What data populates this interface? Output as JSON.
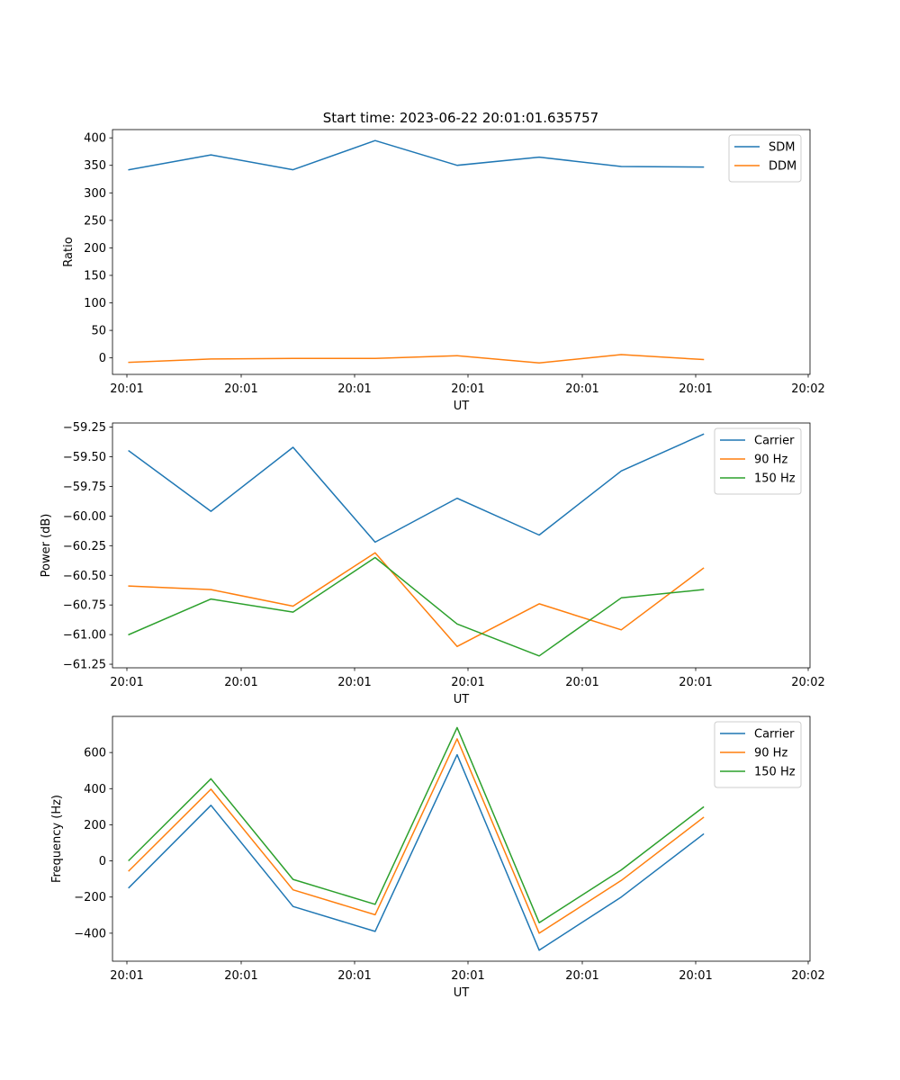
{
  "figure_title": "Start time: 2023-06-22 20:01:01.635757",
  "colors": {
    "blue": "#1f77b4",
    "orange": "#ff7f0e",
    "green": "#2ca02c",
    "axes": "#000000",
    "legend_border": "#cccccc",
    "background": "#ffffff"
  },
  "chart_data": [
    {
      "type": "line",
      "title": "Start time: 2023-06-22 20:01:01.635757",
      "xlabel": "UT",
      "ylabel": "Ratio",
      "x_ticks": [
        "20:01",
        "20:01",
        "20:01",
        "20:01",
        "20:01",
        "20:01",
        "20:02"
      ],
      "x": [
        1,
        2,
        3,
        4,
        5,
        6,
        7,
        8
      ],
      "xlim": [
        0.8,
        9.3
      ],
      "ylim": [
        -30,
        415
      ],
      "y_ticks": [
        0,
        50,
        100,
        150,
        200,
        250,
        300,
        350,
        400
      ],
      "y_tick_labels": [
        "0",
        "50",
        "100",
        "150",
        "200",
        "250",
        "300",
        "350",
        "400"
      ],
      "legend_position": "upper right",
      "grid": false,
      "series": [
        {
          "name": "SDM",
          "color": "#1f77b4",
          "values": [
            342,
            369,
            342,
            395,
            350,
            365,
            348,
            347
          ]
        },
        {
          "name": "DDM",
          "color": "#ff7f0e",
          "values": [
            -8,
            -2,
            -1,
            -1,
            4,
            -9,
            6,
            -3
          ]
        }
      ]
    },
    {
      "type": "line",
      "title": "",
      "xlabel": "UT",
      "ylabel": "Power (dB)",
      "x_ticks": [
        "20:01",
        "20:01",
        "20:01",
        "20:01",
        "20:01",
        "20:01",
        "20:02"
      ],
      "x": [
        1,
        2,
        3,
        4,
        5,
        6,
        7,
        8
      ],
      "xlim": [
        0.8,
        9.3
      ],
      "ylim": [
        -61.28,
        -59.215
      ],
      "y_ticks": [
        -61.25,
        -61.0,
        -60.75,
        -60.5,
        -60.25,
        -60.0,
        -59.75,
        -59.5,
        -59.25
      ],
      "y_tick_labels": [
        "−61.25",
        "−61.00",
        "−60.75",
        "−60.50",
        "−60.25",
        "−60.00",
        "−59.75",
        "−59.50",
        "−59.25"
      ],
      "legend_position": "upper right",
      "grid": false,
      "series": [
        {
          "name": "Carrier",
          "color": "#1f77b4",
          "values": [
            -59.45,
            -59.96,
            -59.42,
            -60.22,
            -59.85,
            -60.16,
            -59.62,
            -59.31
          ]
        },
        {
          "name": "90 Hz",
          "color": "#ff7f0e",
          "values": [
            -60.59,
            -60.62,
            -60.76,
            -60.31,
            -61.1,
            -60.74,
            -60.96,
            -60.44
          ]
        },
        {
          "name": "150 Hz",
          "color": "#2ca02c",
          "values": [
            -61.0,
            -60.7,
            -60.81,
            -60.35,
            -60.91,
            -61.18,
            -60.69,
            -60.62
          ]
        }
      ]
    },
    {
      "type": "line",
      "title": "",
      "xlabel": "UT",
      "ylabel": "Frequency (Hz)",
      "x_ticks": [
        "20:01",
        "20:01",
        "20:01",
        "20:01",
        "20:01",
        "20:01",
        "20:02"
      ],
      "x": [
        1,
        2,
        3,
        4,
        5,
        6,
        7,
        8
      ],
      "xlim": [
        0.8,
        9.3
      ],
      "ylim": [
        -555,
        800
      ],
      "y_ticks": [
        -400,
        -200,
        0,
        200,
        400,
        600
      ],
      "y_tick_labels": [
        "−400",
        "−200",
        "0",
        "200",
        "400",
        "600"
      ],
      "legend_position": "upper right",
      "grid": false,
      "series": [
        {
          "name": "Carrier",
          "color": "#1f77b4",
          "values": [
            -148,
            308,
            -252,
            -390,
            588,
            -494,
            -200,
            148
          ]
        },
        {
          "name": "90 Hz",
          "color": "#ff7f0e",
          "values": [
            -55,
            397,
            -160,
            -298,
            676,
            -400,
            -108,
            240
          ]
        },
        {
          "name": "150 Hz",
          "color": "#2ca02c",
          "values": [
            3,
            455,
            -102,
            -240,
            738,
            -342,
            -50,
            298
          ]
        }
      ]
    }
  ]
}
